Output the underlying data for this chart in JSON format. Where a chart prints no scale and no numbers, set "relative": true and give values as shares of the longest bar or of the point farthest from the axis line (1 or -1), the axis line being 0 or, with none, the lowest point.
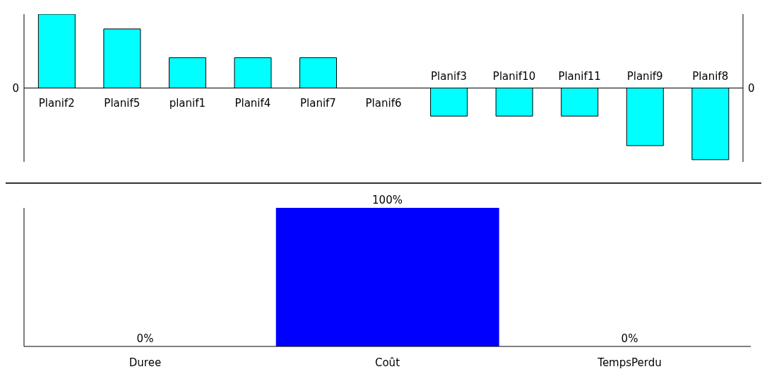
{
  "chart_data": [
    {
      "type": "bar",
      "relative": true,
      "categories": [
        "Planif2",
        "Planif5",
        "planif1",
        "Planif4",
        "Planif7",
        "Planif6",
        "Planif3",
        "Planif10",
        "Planif11",
        "Planif9",
        "Planif8"
      ],
      "values": [
        1,
        0.8,
        0.41,
        0.41,
        0.41,
        0,
        -0.38,
        -0.38,
        -0.38,
        -0.78,
        -0.97
      ],
      "color": "#00ffff",
      "annotations": [
        "0",
        "0"
      ]
    },
    {
      "type": "bar",
      "categories": [
        "Duree",
        "Coût",
        "TempsPerdu"
      ],
      "values": [
        0,
        100,
        0
      ],
      "value_labels": [
        "0%",
        "100%",
        "0%"
      ],
      "color": "#0000ff"
    }
  ]
}
